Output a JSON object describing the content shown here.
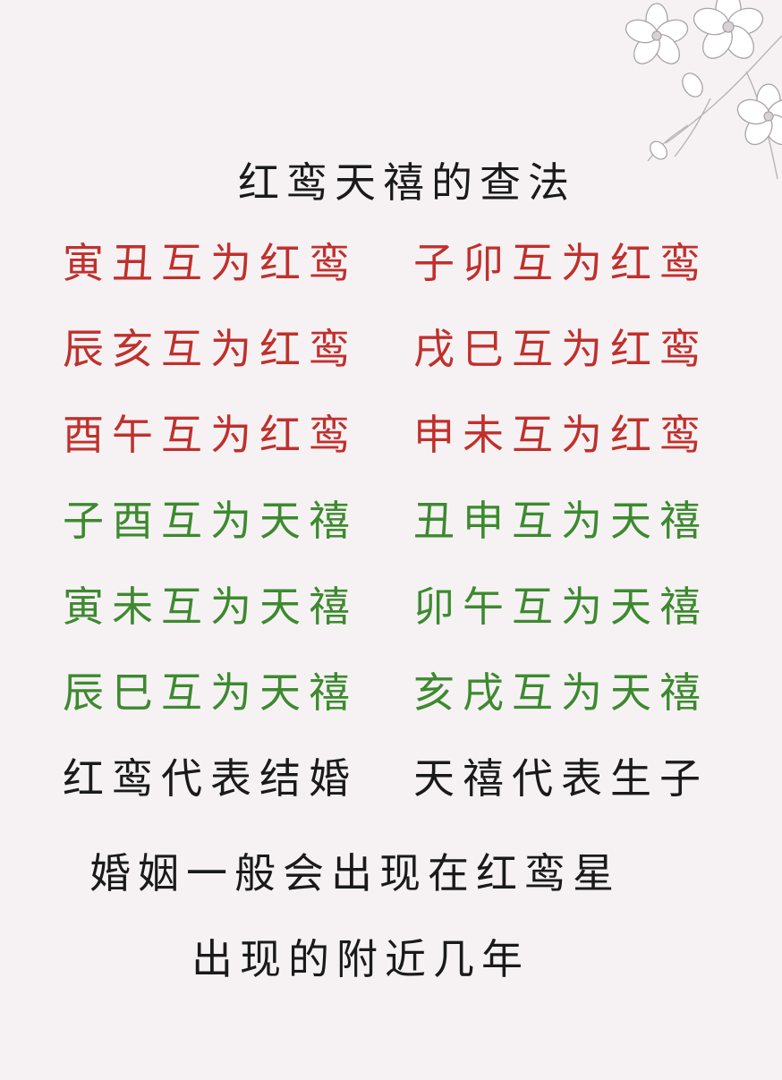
{
  "title": "红鸾天禧的查法",
  "rows": [
    {
      "left": "寅丑互为红鸾",
      "right": "子卯互为红鸾",
      "color": "#c0302c"
    },
    {
      "left": "辰亥互为红鸾",
      "right": "戌巳互为红鸾",
      "color": "#c0302c"
    },
    {
      "left": "酉午互为红鸾",
      "right": "申未互为红鸾",
      "color": "#c0302c"
    },
    {
      "left": "子酉互为天禧",
      "right": "丑申互为天禧",
      "color": "#3c8a2e"
    },
    {
      "left": "寅未互为天禧",
      "right": "卯午互为天禧",
      "color": "#3c8a2e"
    },
    {
      "left": "辰巳互为天禧",
      "right": "亥戌互为天禧",
      "color": "#3c8a2e"
    },
    {
      "left": "红鸾代表结婚",
      "right": "天禧代表生子",
      "color": "#1a1a1a"
    }
  ],
  "footer": {
    "line1": "婚姻一般会出现在红鸾星",
    "line2": "出现的附近几年"
  },
  "decoration": "flower-illustration"
}
